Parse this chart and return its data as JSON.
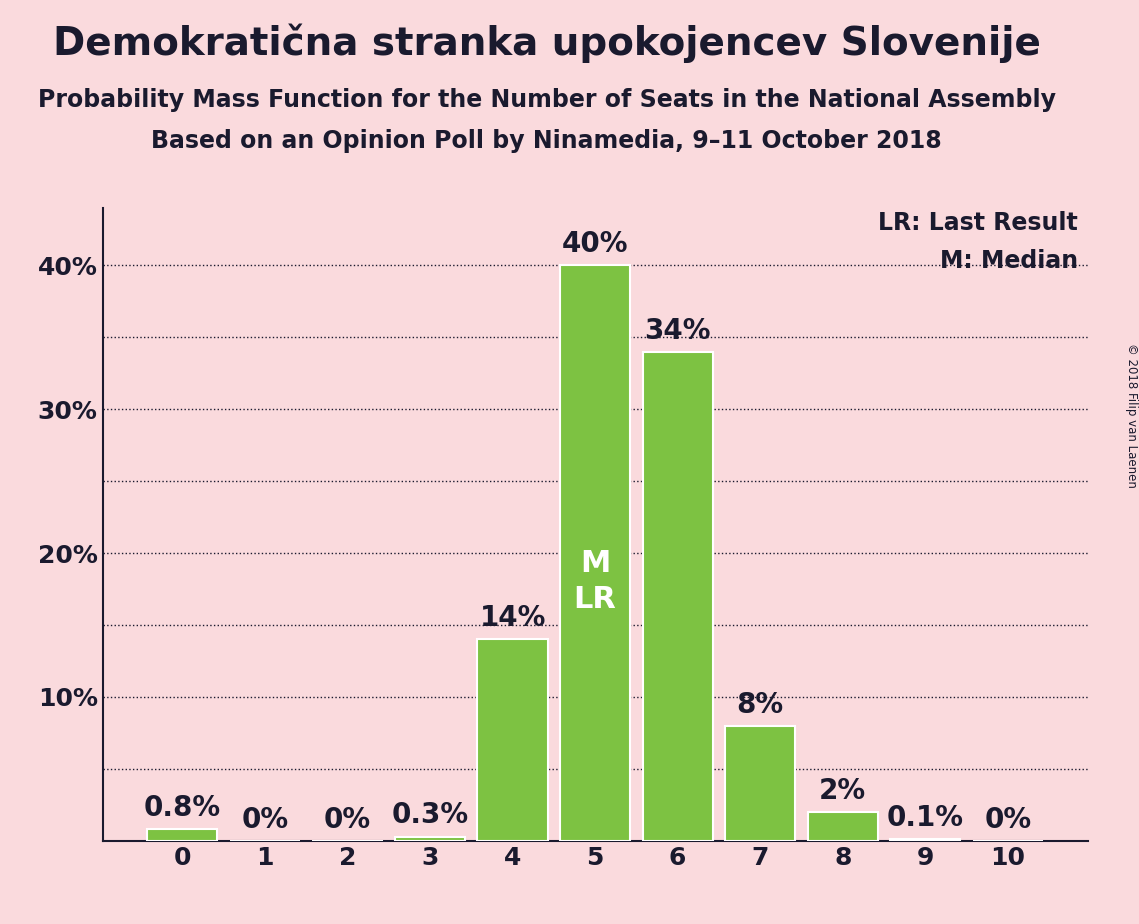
{
  "title": "Demokratična stranka upokojencev Slovenije",
  "subtitle1": "Probability Mass Function for the Number of Seats in the National Assembly",
  "subtitle2": "Based on an Opinion Poll by Ninamedia, 9–11 October 2018",
  "copyright": "© 2018 Filip van Laenen",
  "categories": [
    0,
    1,
    2,
    3,
    4,
    5,
    6,
    7,
    8,
    9,
    10
  ],
  "values": [
    0.8,
    0.0,
    0.0,
    0.3,
    14.0,
    40.0,
    34.0,
    8.0,
    2.0,
    0.1,
    0.0
  ],
  "labels": [
    "0.8%",
    "0%",
    "0%",
    "0.3%",
    "14%",
    "40%",
    "34%",
    "8%",
    "2%",
    "0.1%",
    "0%"
  ],
  "bar_color": "#7dc242",
  "background_color": "#fadadd",
  "text_color": "#1a1a2e",
  "median_seat": 5,
  "lr_seat": 5,
  "legend_lr": "LR: Last Result",
  "legend_m": "M: Median",
  "ylim": [
    0,
    44
  ],
  "yticks_labeled": [
    10,
    20,
    30,
    40
  ],
  "yticks_dotted": [
    5,
    10,
    15,
    20,
    25,
    30,
    35,
    40
  ],
  "grid_color": "#1a1a2e",
  "title_fontsize": 28,
  "subtitle_fontsize": 17,
  "tick_fontsize": 18,
  "annotation_fontsize": 20,
  "mlr_fontsize": 22
}
